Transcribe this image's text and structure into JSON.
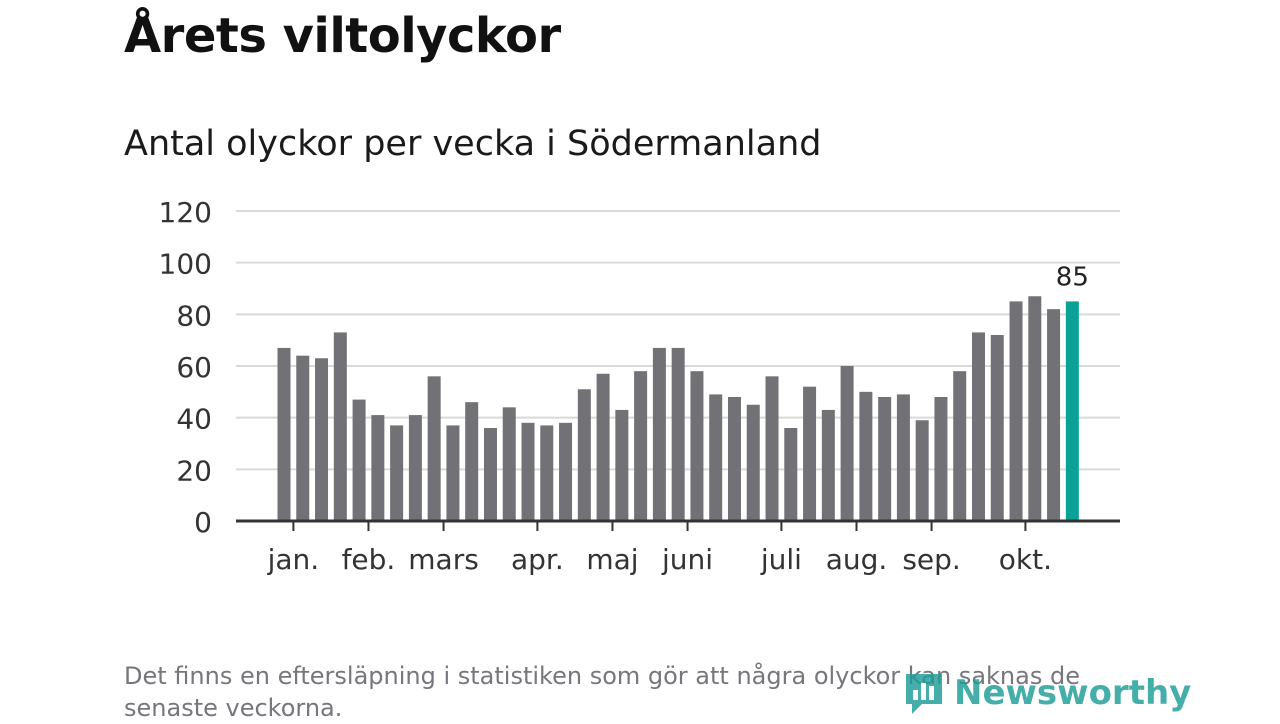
{
  "title": "Årets viltolyckor",
  "subtitle": "Antal olyckor per vecka i Södermanland",
  "footnote": "Det finns en eftersläpning i statistiken som gör att några olyckor kan saknas de senaste veckorna.",
  "brand": {
    "name": "Newsworthy",
    "icon": "newsworthy-logo-icon",
    "color": "#1d9d96"
  },
  "chart_data": {
    "type": "bar",
    "title": "",
    "xlabel": "",
    "ylabel": "",
    "ylim": [
      0,
      120
    ],
    "yticks": [
      0,
      20,
      40,
      60,
      80,
      100,
      120
    ],
    "grid": true,
    "bar_color": "#727176",
    "highlight_color": "#0ca197",
    "values": [
      67,
      64,
      63,
      73,
      47,
      41,
      37,
      41,
      56,
      37,
      46,
      36,
      44,
      38,
      37,
      38,
      51,
      57,
      43,
      58,
      67,
      67,
      58,
      49,
      48,
      45,
      56,
      36,
      52,
      43,
      60,
      50,
      48,
      49,
      39,
      48,
      58,
      73,
      72,
      85,
      87,
      82,
      85
    ],
    "highlight_index": 42,
    "highlight_label": "85",
    "month_labels": [
      {
        "label": "jan.",
        "week": 0.5
      },
      {
        "label": "feb.",
        "week": 4.5
      },
      {
        "label": "mars",
        "week": 8.5
      },
      {
        "label": "apr.",
        "week": 13.5
      },
      {
        "label": "maj",
        "week": 17.5
      },
      {
        "label": "juni",
        "week": 21.5
      },
      {
        "label": "juli",
        "week": 26.5
      },
      {
        "label": "aug.",
        "week": 30.5
      },
      {
        "label": "sep.",
        "week": 34.5
      },
      {
        "label": "okt.",
        "week": 39.5
      }
    ]
  }
}
